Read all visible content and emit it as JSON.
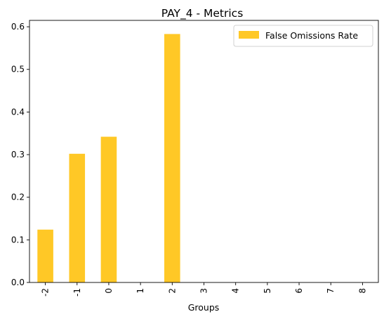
{
  "chart_data": {
    "type": "bar",
    "title": "PAY_4 - Metrics",
    "xlabel": "Groups",
    "ylabel": "",
    "categories": [
      "-2",
      "-1",
      "0",
      "1",
      "2",
      "3",
      "4",
      "5",
      "6",
      "7",
      "8"
    ],
    "series": [
      {
        "name": "False Omissions Rate",
        "color": "#ffc826",
        "values": [
          0.124,
          0.302,
          0.342,
          0,
          0.583,
          0,
          0,
          0,
          0,
          0,
          0
        ]
      }
    ],
    "ylim": [
      0,
      0.615
    ],
    "yticks": [
      0.0,
      0.1,
      0.2,
      0.3,
      0.4,
      0.5,
      0.6
    ],
    "ytick_labels": [
      "0.0",
      "0.1",
      "0.2",
      "0.3",
      "0.4",
      "0.5",
      "0.6"
    ],
    "grid": false,
    "legend_position": "top-right"
  }
}
